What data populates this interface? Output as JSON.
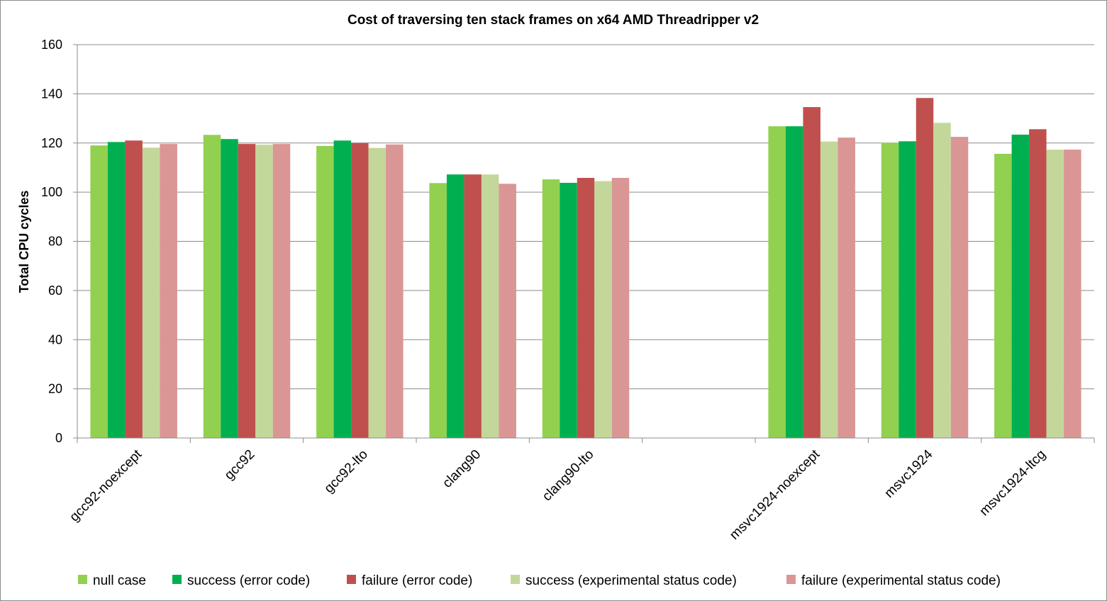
{
  "chart_data": {
    "type": "bar",
    "title": "Cost of traversing ten stack frames on x64 AMD Threadripper v2",
    "xlabel": "",
    "ylabel": "Total CPU cycles",
    "ylim": [
      0,
      160
    ],
    "yticks": [
      0,
      20,
      40,
      60,
      80,
      100,
      120,
      140,
      160
    ],
    "grid": true,
    "legend": "bottom",
    "categories": [
      "gcc92-noexcept",
      "gcc92",
      "gcc92-lto",
      "clang90",
      "clang90-lto",
      "",
      "msvc1924-noexcept",
      "msvc1924",
      "msvc1924-ltcg"
    ],
    "series": [
      {
        "name": "null case",
        "color": "#92d050",
        "values": [
          119,
          123.3,
          118.8,
          103.7,
          105.2,
          null,
          126.8,
          120.1,
          115.6
        ]
      },
      {
        "name": "success (error code)",
        "color": "#00b050",
        "values": [
          120.4,
          121.6,
          121,
          107.2,
          103.8,
          null,
          126.8,
          120.7,
          123.4
        ]
      },
      {
        "name": "failure (error code)",
        "color": "#c0504d",
        "values": [
          121,
          119.6,
          120,
          107.2,
          105.8,
          null,
          134.6,
          138.3,
          125.6
        ]
      },
      {
        "name": "success (experimental status code)",
        "color": "#c4d79b",
        "values": [
          118.1,
          119.3,
          118,
          107.2,
          104.5,
          null,
          120.6,
          128.2,
          117.3
        ]
      },
      {
        "name": "failure (experimental status code)",
        "color": "#da9694",
        "values": [
          119.6,
          119.6,
          119.4,
          103.4,
          105.8,
          null,
          122.2,
          122.5,
          117.3
        ]
      }
    ]
  }
}
